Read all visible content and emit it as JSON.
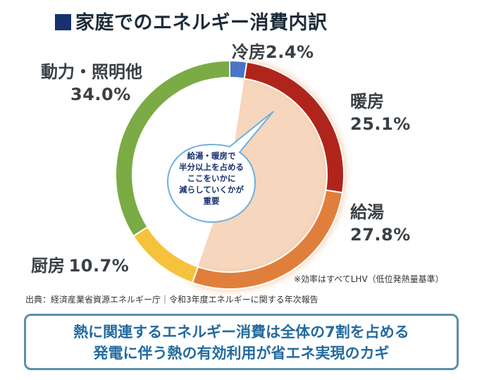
{
  "title": "家庭でのエネルギー消費内訳",
  "chart_data": {
    "type": "pie",
    "categories": [
      "冷房",
      "暖房",
      "給湯",
      "厨房",
      "動力・照明他"
    ],
    "values": [
      2.4,
      25.1,
      27.8,
      10.7,
      34.0
    ],
    "unit": "%",
    "colors": [
      "#4a74c9",
      "#b0251b",
      "#e07f3c",
      "#f5c23c",
      "#7aab45"
    ],
    "labels": [
      {
        "name": "冷房",
        "pct": "2.4%"
      },
      {
        "name": "暖房",
        "pct": "25.1%"
      },
      {
        "name": "給湯",
        "pct": "27.8%"
      },
      {
        "name": "厨房",
        "pct": "10.7%"
      },
      {
        "name": "動力・照明他",
        "pct": "34.0%"
      }
    ]
  },
  "callout": [
    "給湯・暖房で",
    "半分以上を占める",
    "ここをいかに",
    "減らしていくかが",
    "重要"
  ],
  "note": "※効率はすべてLHV（低位発熱量基準）",
  "source": "出典：経済産業省資源エネルギー庁｜令和3年度エネルギーに関する年次報告",
  "conclusion": {
    "line1": "熱に関連するエネルギー消費は全体の7割を占める",
    "line2": "発電に伴う熱の有効利用が省エネ実現のカギ"
  }
}
